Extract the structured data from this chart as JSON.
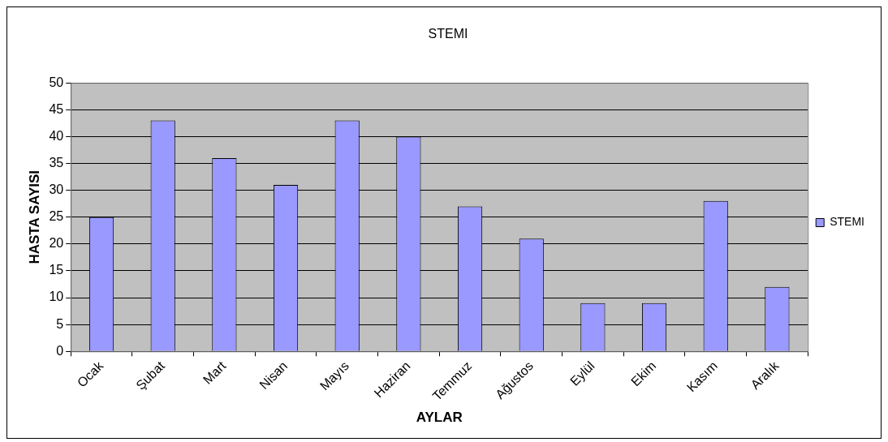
{
  "chart_data": {
    "type": "bar",
    "title": "STEMI",
    "xlabel": "AYLAR",
    "ylabel": "HASTA SAYISI",
    "categories": [
      "Ocak",
      "Şubat",
      "Mart",
      "Nisan",
      "Mayıs",
      "Haziran",
      "Temmuz",
      "Ağustos",
      "Eylül",
      "Ekim",
      "Kasım",
      "Aralık"
    ],
    "series": [
      {
        "name": "STEMI",
        "color": "#9999ff",
        "values": [
          25,
          43,
          36,
          31,
          43,
          40,
          27,
          21,
          9,
          9,
          28,
          12
        ]
      }
    ],
    "ylim": [
      0,
      50
    ],
    "yticks": [
      0,
      5,
      10,
      15,
      20,
      25,
      30,
      35,
      40,
      45,
      50
    ],
    "grid": "y",
    "legend": "right"
  }
}
